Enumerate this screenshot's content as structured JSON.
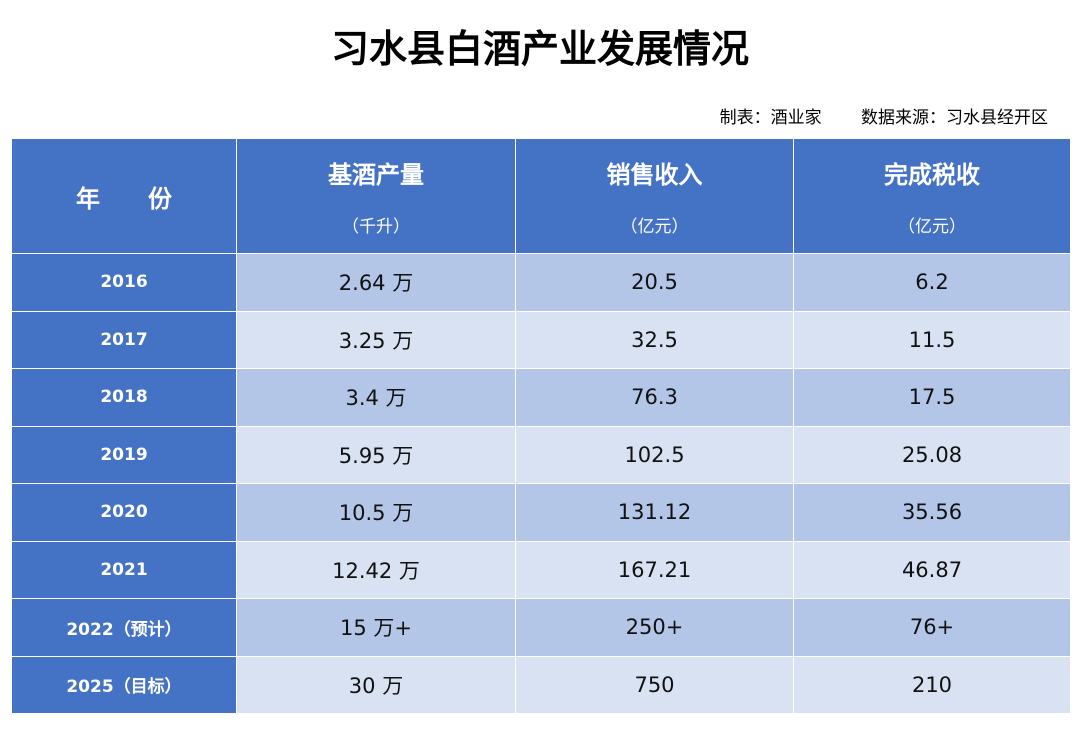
{
  "title": "习水县白酒产业发展情况",
  "meta": {
    "maker": "制表：酒业家",
    "source": "数据来源：习水县经开区"
  },
  "colors": {
    "header": "#4472C4",
    "row_odd": "#B4C6E7",
    "row_even": "#D9E2F3"
  },
  "headers": [
    {
      "label": "年　　份",
      "unit": ""
    },
    {
      "label": "基酒产量",
      "unit": "（千升）"
    },
    {
      "label": "销售收入",
      "unit": "（亿元）"
    },
    {
      "label": "完成税收",
      "unit": "（亿元）"
    }
  ],
  "rows": [
    [
      "2016",
      "2.64 万",
      "20.5",
      "6.2"
    ],
    [
      "2017",
      "3.25 万",
      "32.5",
      "11.5"
    ],
    [
      "2018",
      "3.4 万",
      "76.3",
      "17.5"
    ],
    [
      "2019",
      "5.95 万",
      "102.5",
      "25.08"
    ],
    [
      "2020",
      "10.5 万",
      "131.12",
      "35.56"
    ],
    [
      "2021",
      "12.42 万",
      "167.21",
      "46.87"
    ],
    [
      "2022（预计）",
      "15 万+",
      "250+",
      "76+"
    ],
    [
      "2025（目标）",
      "30 万",
      "750",
      "210"
    ]
  ]
}
